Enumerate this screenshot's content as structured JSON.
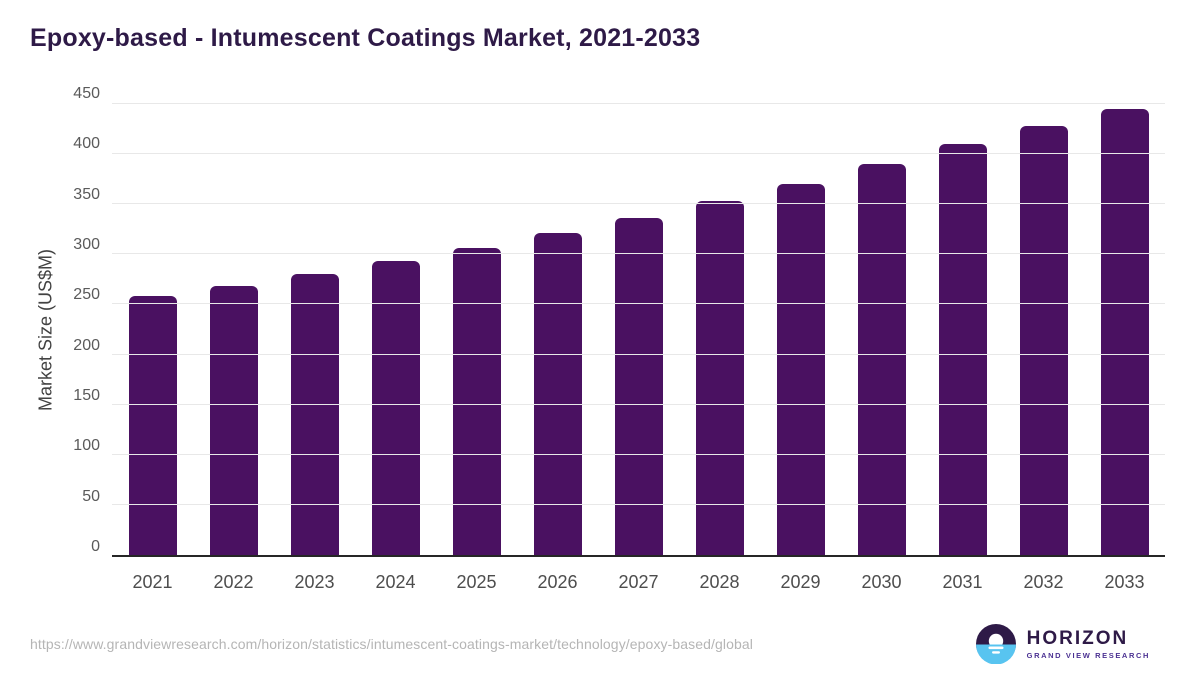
{
  "title": "Epoxy-based - Intumescent Coatings Market, 2021-2033",
  "chart_data": {
    "type": "bar",
    "title": "Epoxy-based - Intumescent Coatings Market, 2021-2033",
    "categories": [
      "2021",
      "2022",
      "2023",
      "2024",
      "2025",
      "2026",
      "2027",
      "2028",
      "2029",
      "2030",
      "2031",
      "2032",
      "2033"
    ],
    "values": [
      258,
      268,
      280,
      293,
      306,
      321,
      336,
      353,
      370,
      390,
      410,
      428,
      445
    ],
    "xlabel": "",
    "ylabel": "Market Size (US$M)",
    "ylim": [
      0,
      450
    ],
    "ytick_step": 50,
    "yticks": [
      0,
      50,
      100,
      150,
      200,
      250,
      300,
      350,
      400,
      450
    ],
    "grid": true,
    "legend": "none",
    "bar_color": "#4A1161"
  },
  "footer": {
    "source_url": "https://www.grandviewresearch.com/horizon/statistics/intumescent-coatings-market/technology/epoxy-based/global",
    "logo": {
      "name": "HORIZON",
      "subtitle": "GRAND VIEW RESEARCH",
      "icon": "horizon-sun-circle-icon"
    }
  },
  "colors": {
    "title_purple": "#2E1A47",
    "bar_purple": "#4A1161",
    "logo_blue": "#58C4F0",
    "gridline": "#e8e8e8",
    "axis_line": "#262626",
    "tick_text": "#5a5a5a",
    "url_text": "#b5b5b5"
  }
}
